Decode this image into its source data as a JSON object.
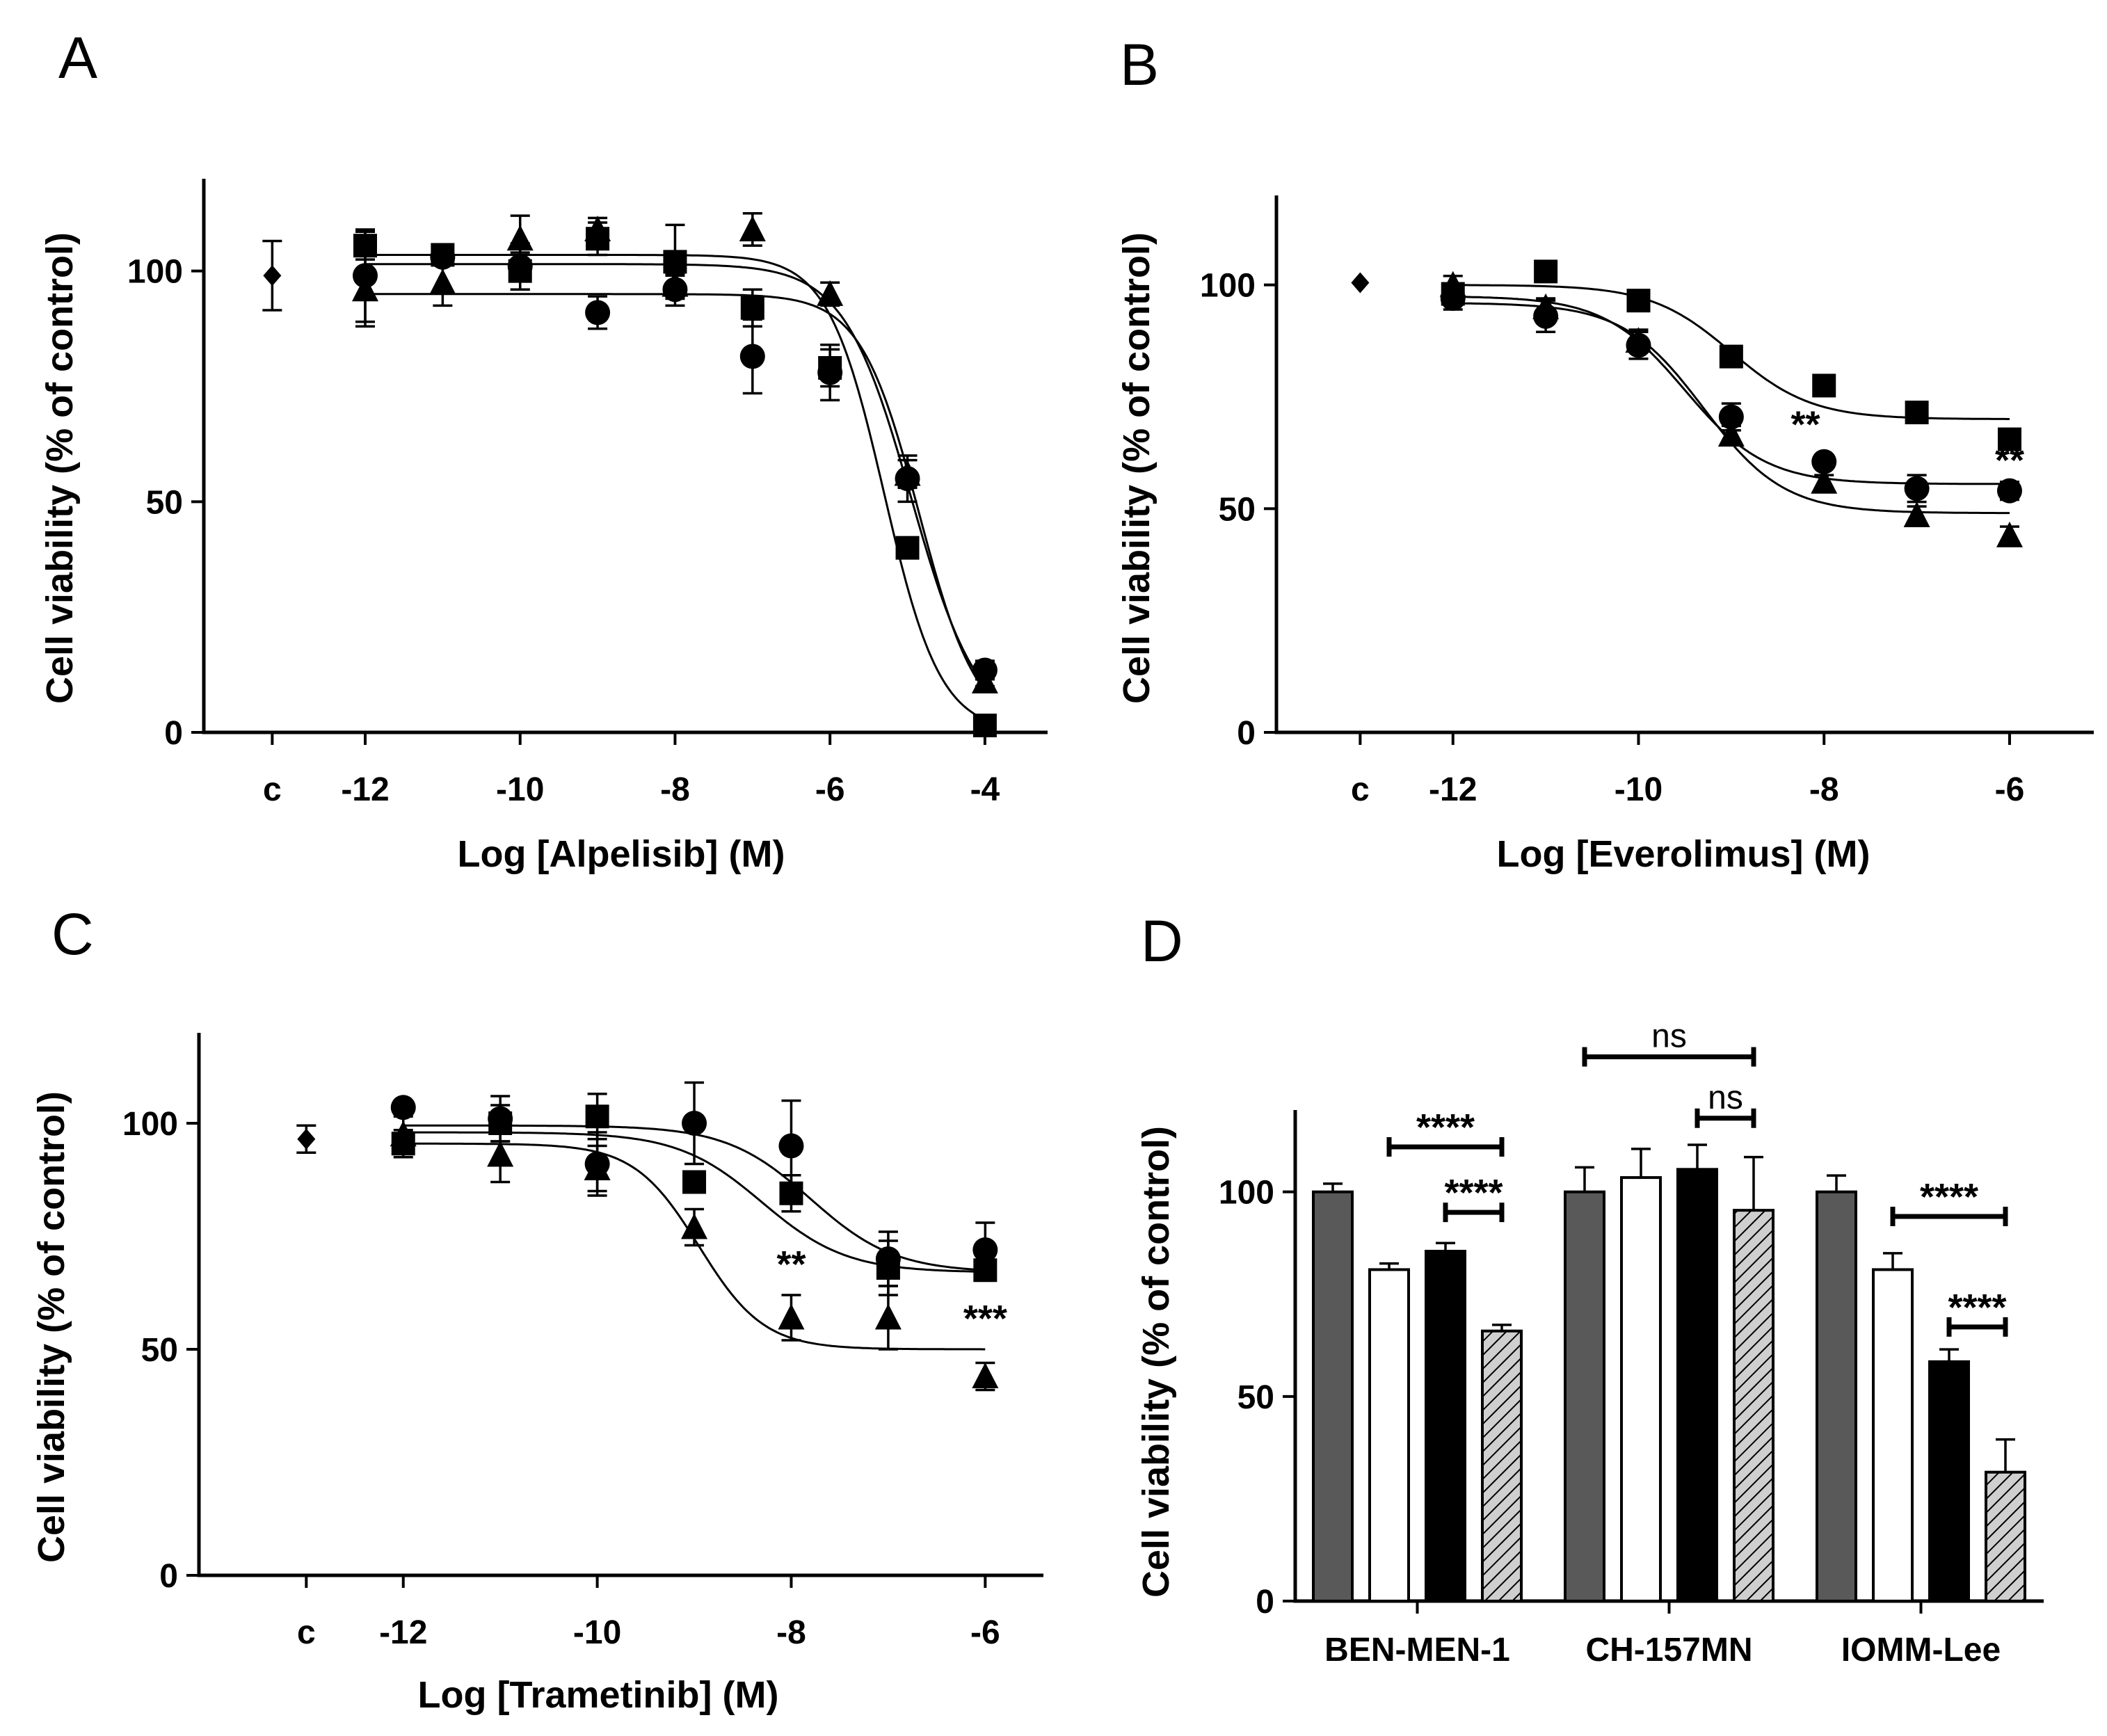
{
  "figure": {
    "panel_letters": [
      "A",
      "B",
      "C",
      "D"
    ]
  },
  "colors": {
    "dark_bar": "#595959",
    "white_bar": "#ffffff",
    "black_bar": "#000000",
    "hatched_fill": "#cfcfcf",
    "ink": "#000000"
  },
  "chart_data": [
    {
      "panel": "A",
      "type": "scatter",
      "fit": "sigmoidal dose-response",
      "xlabel": "Log [Alpelisib] (M)",
      "ylabel": "Cell viability (% of control)",
      "xlim": [
        -14.2,
        -3.2
      ],
      "ylim": [
        0,
        120
      ],
      "xticks": [
        {
          "x": -13.2,
          "label": "c"
        },
        {
          "x": -12,
          "label": "-12"
        },
        {
          "x": -10,
          "label": "-10"
        },
        {
          "x": -8,
          "label": "-8"
        },
        {
          "x": -6,
          "label": "-6"
        },
        {
          "x": -4,
          "label": "-4"
        }
      ],
      "yticks": [
        0,
        50,
        100
      ],
      "control": {
        "x": -13.2,
        "y": 99,
        "err": 7.5
      },
      "series": [
        {
          "marker": "square",
          "x": [
            -12,
            -11,
            -10,
            -9,
            -8,
            -7,
            -6,
            -5,
            -4
          ],
          "y": [
            105.5,
            103.5,
            100,
            107,
            102,
            92,
            79,
            40,
            1.5
          ],
          "err": [
            3,
            1.5,
            4,
            3.5,
            8,
            4,
            4,
            1.5,
            1
          ],
          "fit": {
            "top": 103.5,
            "bottom": 0,
            "log_ec50": -5.3,
            "hill": 1.2
          }
        },
        {
          "marker": "circle",
          "x": [
            -12,
            -11,
            -10,
            -9,
            -8,
            -7,
            -6,
            -5,
            -4
          ],
          "y": [
            99,
            103,
            101,
            91,
            96,
            81.5,
            78,
            55,
            13.5
          ],
          "err": [
            10,
            1.5,
            5,
            3.5,
            3.5,
            8,
            6,
            5,
            2
          ],
          "fit": {
            "top": 101.5,
            "bottom": 0,
            "log_ec50": -4.95,
            "hill": 1.0
          }
        },
        {
          "marker": "triangle",
          "x": [
            -12,
            -11,
            -10,
            -9,
            -8,
            -7,
            -6,
            -5,
            -4
          ],
          "y": [
            96,
            97.5,
            107,
            109,
            97,
            109,
            95,
            56,
            11
          ],
          "err": [
            8,
            5,
            5,
            2.5,
            2,
            3.5,
            2.5,
            3,
            1
          ],
          "fit": {
            "top": 95,
            "bottom": 0,
            "log_ec50": -4.85,
            "hill": 1.15
          }
        }
      ],
      "annotations": []
    },
    {
      "panel": "B",
      "type": "scatter",
      "fit": "sigmoidal dose-response",
      "xlabel": "Log [Everolimus] (M)",
      "ylabel": "Cell viability (% of control)",
      "xlim": [
        -14,
        -5.1
      ],
      "ylim": [
        0,
        120
      ],
      "xticks": [
        {
          "x": -13,
          "label": "c"
        },
        {
          "x": -12,
          "label": "-12"
        },
        {
          "x": -10,
          "label": "-10"
        },
        {
          "x": -8,
          "label": "-8"
        },
        {
          "x": -6,
          "label": "-6"
        }
      ],
      "yticks": [
        0,
        50,
        100
      ],
      "control": {
        "x": -13,
        "y": 100.5,
        "err": 0
      },
      "series": [
        {
          "marker": "square",
          "x": [
            -12,
            -11,
            -10,
            -9,
            -8,
            -7,
            -6
          ],
          "y": [
            98,
            103,
            96.5,
            84,
            77.5,
            71.5,
            65.5
          ],
          "err": [
            2,
            2,
            1,
            2,
            2,
            1,
            1
          ],
          "fit": {
            "top": 100,
            "bottom": 70,
            "log_ec50": -9.0,
            "hill": 1.0
          }
        },
        {
          "marker": "circle",
          "x": [
            -12,
            -11,
            -10,
            -9,
            -8,
            -7,
            -6
          ],
          "y": [
            97,
            93,
            86.5,
            70.5,
            60.5,
            54.5,
            54
          ],
          "err": [
            2.5,
            3.5,
            3,
            3,
            1,
            3,
            2
          ],
          "fit": {
            "top": 97.5,
            "bottom": 55.5,
            "log_ec50": -9.5,
            "hill": 1.0
          }
        },
        {
          "marker": "triangle",
          "x": [
            -12,
            -11,
            -10,
            -9,
            -8,
            -7,
            -6
          ],
          "y": [
            100,
            95,
            87.5,
            66.5,
            56,
            48.5,
            44
          ],
          "err": [
            2,
            2,
            2.5,
            2,
            1.5,
            2,
            2
          ],
          "fit": {
            "top": 96,
            "bottom": 49,
            "log_ec50": -9.3,
            "hill": 1.0
          }
        }
      ],
      "annotations": [
        {
          "x": -8.2,
          "y": 66,
          "text": "**"
        },
        {
          "x": -6.0,
          "y": 58,
          "text": "**"
        }
      ]
    },
    {
      "panel": "C",
      "type": "scatter",
      "fit": "sigmoidal dose-response",
      "xlabel": "Log [Trametinib] (M)",
      "ylabel": "Cell viability (% of control)",
      "xlim": [
        -14.2,
        -5.4
      ],
      "ylim": [
        0,
        120
      ],
      "xticks": [
        {
          "x": -13,
          "label": "c"
        },
        {
          "x": -12,
          "label": "-12"
        },
        {
          "x": -10,
          "label": "-10"
        },
        {
          "x": -8,
          "label": "-8"
        },
        {
          "x": -6,
          "label": "-6"
        }
      ],
      "yticks": [
        0,
        50,
        100
      ],
      "control": {
        "x": -13,
        "y": 96.5,
        "err": 3
      },
      "series": [
        {
          "marker": "circle",
          "x": [
            -12,
            -11,
            -10,
            -9,
            -8,
            -7,
            -6
          ],
          "y": [
            103.5,
            101,
            91,
            100,
            95,
            70,
            72
          ],
          "err": [
            1,
            5,
            7,
            9,
            10,
            6,
            6
          ],
          "fit": {
            "top": 99.5,
            "bottom": 67,
            "log_ec50": -7.8,
            "hill": 1.0
          }
        },
        {
          "marker": "square",
          "x": [
            -12,
            -11,
            -10,
            -9,
            -8,
            -7,
            -6
          ],
          "y": [
            95.5,
            100,
            101.5,
            87,
            84.5,
            68,
            67.5
          ],
          "err": [
            3,
            4,
            5,
            2,
            4,
            6,
            2
          ],
          "fit": {
            "top": 98,
            "bottom": 67,
            "log_ec50": -8.3,
            "hill": 1.0
          }
        },
        {
          "marker": "triangle",
          "x": [
            -12,
            -11,
            -10,
            -9,
            -8,
            -7,
            -6
          ],
          "y": [
            97.5,
            93,
            90,
            77,
            57,
            57,
            44
          ],
          "err": [
            4,
            6,
            5,
            4,
            5,
            7,
            3
          ],
          "fit": {
            "top": 95.5,
            "bottom": 50,
            "log_ec50": -8.95,
            "hill": 1.3
          }
        }
      ],
      "annotations": [
        {
          "x": -8.0,
          "y": 66,
          "text": "**"
        },
        {
          "x": -6.0,
          "y": 54,
          "text": "***"
        }
      ]
    },
    {
      "panel": "D",
      "type": "bar",
      "ylabel": "Cell viability (% of control)",
      "ylim": [
        0,
        120
      ],
      "yticks": [
        0,
        50,
        100
      ],
      "categories": [
        "BEN-MEN-1",
        "CH-157MN",
        "IOMM-Lee"
      ],
      "series": [
        {
          "style": "dark",
          "values": [
            100,
            100,
            100
          ],
          "err": [
            2,
            6,
            4
          ]
        },
        {
          "style": "white",
          "values": [
            81,
            103.5,
            81
          ],
          "err": [
            1.5,
            7,
            4
          ]
        },
        {
          "style": "black",
          "values": [
            85.5,
            105.5,
            58.5
          ],
          "err": [
            2,
            6,
            3
          ]
        },
        {
          "style": "hatched",
          "values": [
            66,
            95.5,
            31.5
          ],
          "err": [
            1.5,
            13,
            8
          ]
        }
      ],
      "brackets": [
        {
          "group": 0,
          "from_bar": 1,
          "to_bar": 3,
          "y": 111,
          "label": "****"
        },
        {
          "group": 0,
          "from_bar": 2,
          "to_bar": 3,
          "y": 95,
          "label": "****"
        },
        {
          "group": 1,
          "from_bar": 0,
          "to_bar": 3,
          "y": 133,
          "label": "ns"
        },
        {
          "group": 1,
          "from_bar": 2,
          "to_bar": 3,
          "y": 118,
          "label": "ns"
        },
        {
          "group": 2,
          "from_bar": 1,
          "to_bar": 3,
          "y": 94,
          "label": "****"
        },
        {
          "group": 2,
          "from_bar": 2,
          "to_bar": 3,
          "y": 67,
          "label": "****"
        }
      ]
    }
  ]
}
